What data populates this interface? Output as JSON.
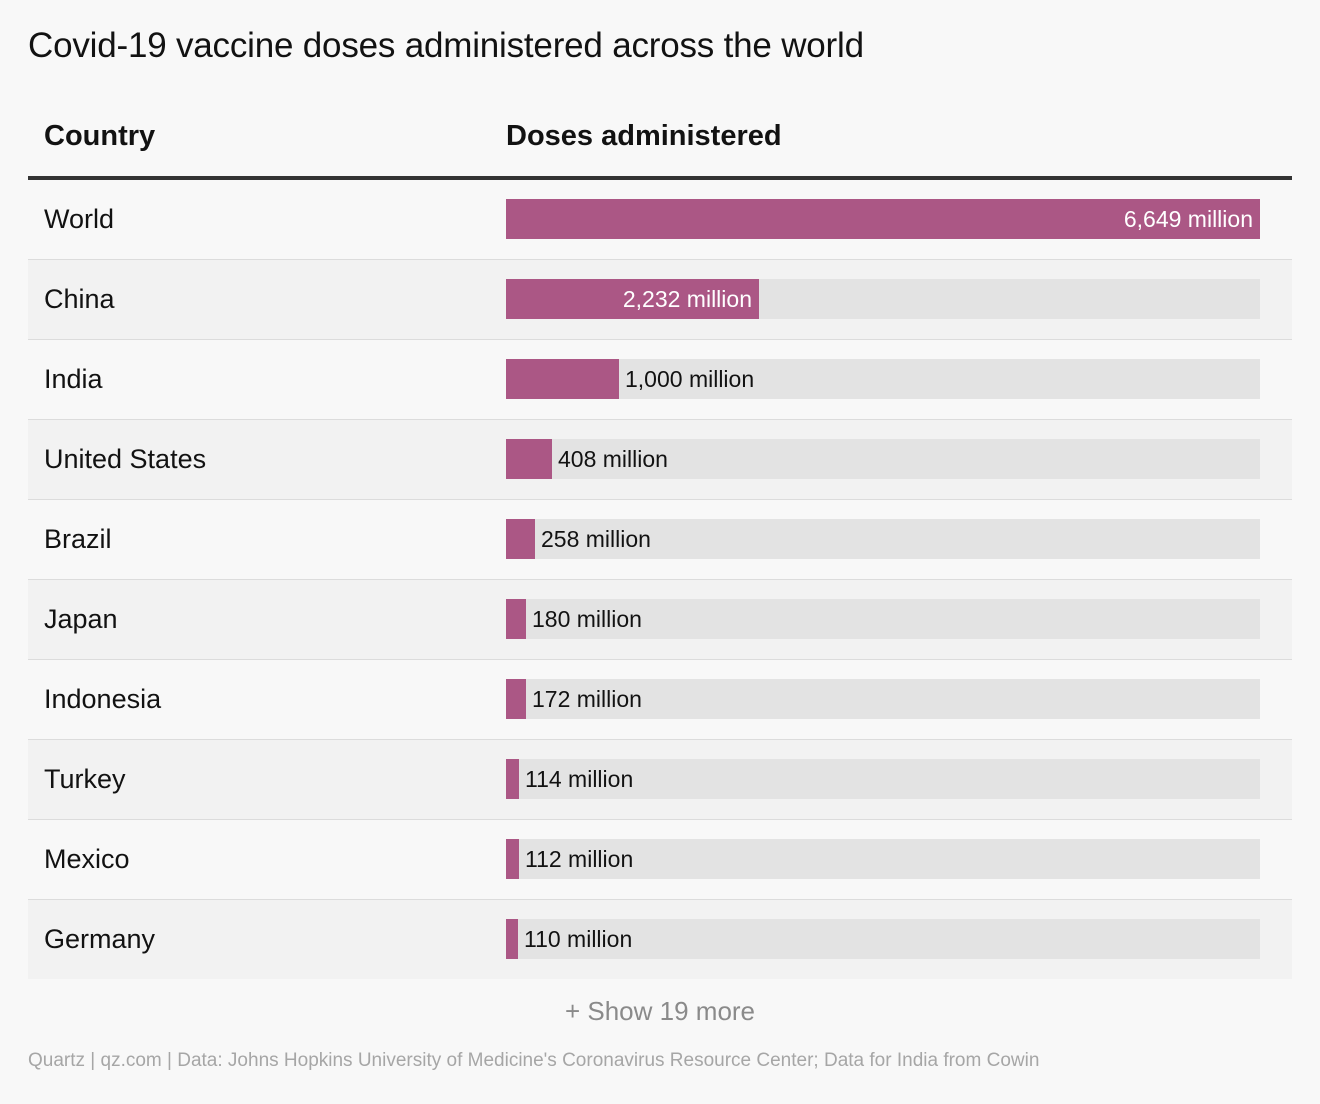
{
  "title": "Covid-19 vaccine doses administered across the world",
  "header": {
    "country": "Country",
    "doses": "Doses administered"
  },
  "show_more": "+ Show 19 more",
  "footer": "Quartz | qz.com | Data: Johns Hopkins University of Medicine's Coronavirus Resource Center; Data for India from Cowin",
  "colors": {
    "bar": "#ab5785",
    "track": "#e3e3e3"
  },
  "chart_data": {
    "type": "bar",
    "orientation": "horizontal",
    "title": "Covid-19 vaccine doses administered across the world",
    "xlabel": "Doses administered",
    "ylabel": "Country",
    "unit": "million",
    "xlim": [
      0,
      6649
    ],
    "categories": [
      "World",
      "China",
      "India",
      "United States",
      "Brazil",
      "Japan",
      "Indonesia",
      "Turkey",
      "Mexico",
      "Germany"
    ],
    "values": [
      6649,
      2232,
      1000,
      408,
      258,
      180,
      172,
      114,
      112,
      110
    ],
    "labels": [
      "6,649 million",
      "2,232 million",
      "1,000 million",
      "408 million",
      "258 million",
      "180 million",
      "172 million",
      "114 million",
      "112 million",
      "110 million"
    ]
  }
}
